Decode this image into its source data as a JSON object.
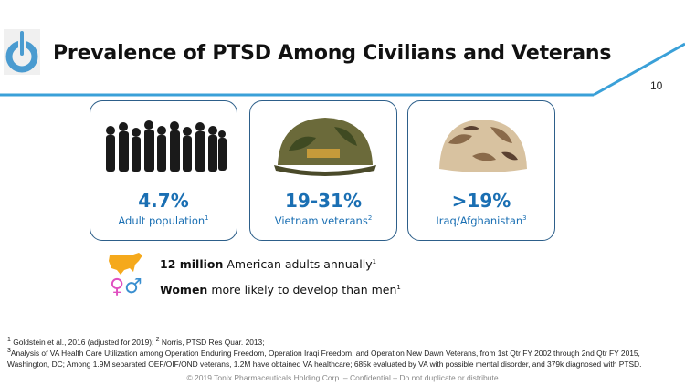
{
  "header": {
    "title": "Prevalence of PTSD Among Civilians and Veterans",
    "page_number": "10",
    "accent_color": "#3aa0d8"
  },
  "cards": [
    {
      "stat": "4.7%",
      "label": "Adult population",
      "ref": "1",
      "image": "crowd-silhouette"
    },
    {
      "stat": "19-31%",
      "label": "Vietnam veterans",
      "ref": "2",
      "image": "vietnam-helmet"
    },
    {
      "stat": ">19%",
      "label": "Iraq/Afghanistan",
      "ref": "3",
      "image": "desert-helmet"
    }
  ],
  "facts": [
    {
      "bold": "12 million",
      "text": " American adults annually",
      "ref": "1",
      "icon": "us-map-icon"
    },
    {
      "bold": "Women",
      "text": " more likely to develop than men",
      "ref": "1",
      "icon": "gender-symbols-icon"
    }
  ],
  "footnotes": {
    "line1_ref1": "1",
    "line1_a": " Goldstein et al., 2016 (adjusted for 2019);  ",
    "line1_ref2": "2",
    "line1_b": " Norris, PTSD Res Quar. 2013;",
    "line2_ref": "3",
    "line2": "Analysis of VA Health Care Utilization among Operation Enduring Freedom, Operation Iraqi Freedom, and Operation New Dawn Veterans, from 1st Qtr FY 2002 through 2nd Qtr FY 2015, Washington, DC; Among 1.9M separated OEF/OIF/OND veterans, 1.2M have obtained VA healthcare; 685k evaluated by VA with possible mental disorder, and 379k diagnosed with PTSD."
  },
  "copyright": "© 2019 Tonix Pharmaceuticals Holding Corp. – Confidential – Do not duplicate or distribute"
}
